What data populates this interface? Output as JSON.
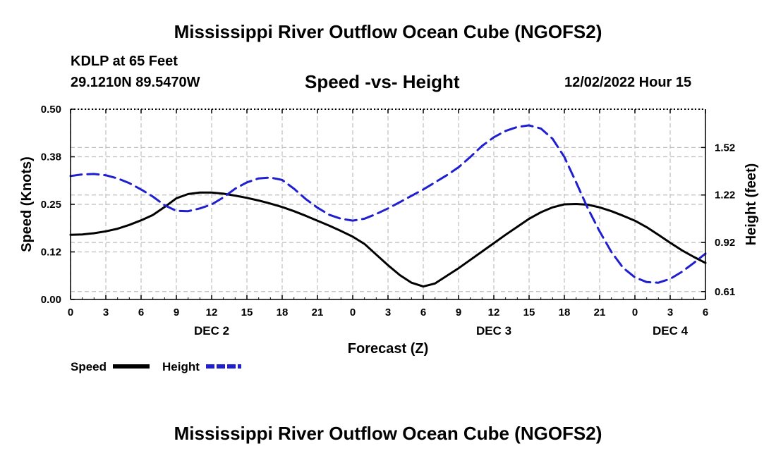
{
  "page": {
    "title_top": "Mississippi River Outflow Ocean Cube (NGOFS2)",
    "title_bottom": "Mississippi River Outflow Ocean Cube (NGOFS2)",
    "station": "KDLP at 65 Feet",
    "coords": "29.1210N  89.5470W",
    "subtitle": "Speed -vs- Height",
    "datetime": "12/02/2022 Hour 15"
  },
  "chart_data": {
    "type": "line",
    "title": "Speed -vs- Height",
    "xlabel": "Forecast (Z)",
    "ylabel": "Speed (Knots)",
    "y2label": "Height (feet)",
    "grid": true,
    "x_range": [
      0,
      54
    ],
    "ylim": [
      0,
      0.5
    ],
    "y2lim": [
      0.56,
      1.762
    ],
    "x_ticks": [
      {
        "x": 0,
        "label": "0"
      },
      {
        "x": 3,
        "label": "3"
      },
      {
        "x": 6,
        "label": "6"
      },
      {
        "x": 9,
        "label": "9"
      },
      {
        "x": 12,
        "label": "12"
      },
      {
        "x": 15,
        "label": "15"
      },
      {
        "x": 18,
        "label": "18"
      },
      {
        "x": 21,
        "label": "21"
      },
      {
        "x": 24,
        "label": "0"
      },
      {
        "x": 27,
        "label": "3"
      },
      {
        "x": 30,
        "label": "6"
      },
      {
        "x": 33,
        "label": "9"
      },
      {
        "x": 36,
        "label": "12"
      },
      {
        "x": 39,
        "label": "15"
      },
      {
        "x": 42,
        "label": "18"
      },
      {
        "x": 45,
        "label": "21"
      },
      {
        "x": 48,
        "label": "0"
      },
      {
        "x": 51,
        "label": "3"
      },
      {
        "x": 54,
        "label": "6"
      }
    ],
    "day_labels": [
      {
        "x": 12,
        "label": "DEC 2"
      },
      {
        "x": 36,
        "label": "DEC 3"
      },
      {
        "x": 51,
        "label": "DEC 4"
      }
    ],
    "y_ticks": [
      {
        "v": 0.0,
        "label": "0.00"
      },
      {
        "v": 0.125,
        "label": "0.12"
      },
      {
        "v": 0.25,
        "label": "0.25"
      },
      {
        "v": 0.375,
        "label": "0.38"
      },
      {
        "v": 0.5,
        "label": "0.50"
      }
    ],
    "y2_ticks": [
      {
        "v": 0.61,
        "label": "0.61"
      },
      {
        "v": 0.92,
        "label": "0.92"
      },
      {
        "v": 1.22,
        "label": "1.22"
      },
      {
        "v": 1.52,
        "label": "1.52"
      }
    ],
    "series": [
      {
        "name": "Speed",
        "axis": "left",
        "color": "#000000",
        "dash": "solid",
        "x": [
          0,
          1,
          2,
          3,
          4,
          5,
          6,
          7,
          8,
          9,
          10,
          11,
          12,
          13,
          14,
          15,
          16,
          17,
          18,
          19,
          20,
          21,
          22,
          23,
          24,
          25,
          26,
          27,
          28,
          29,
          30,
          31,
          32,
          33,
          34,
          35,
          36,
          37,
          38,
          39,
          40,
          41,
          42,
          43,
          44,
          45,
          46,
          47,
          48,
          49,
          50,
          51,
          52,
          53,
          54
        ],
        "values": [
          0.17,
          0.171,
          0.174,
          0.179,
          0.186,
          0.196,
          0.208,
          0.222,
          0.243,
          0.266,
          0.277,
          0.281,
          0.281,
          0.278,
          0.273,
          0.267,
          0.26,
          0.252,
          0.243,
          0.232,
          0.22,
          0.207,
          0.194,
          0.18,
          0.165,
          0.146,
          0.118,
          0.09,
          0.064,
          0.044,
          0.034,
          0.042,
          0.062,
          0.082,
          0.104,
          0.126,
          0.148,
          0.17,
          0.191,
          0.212,
          0.229,
          0.242,
          0.25,
          0.251,
          0.249,
          0.242,
          0.232,
          0.22,
          0.207,
          0.19,
          0.17,
          0.149,
          0.129,
          0.112,
          0.096
        ]
      },
      {
        "name": "Height",
        "axis": "right",
        "color": "#1f1fcf",
        "dash": "dashed",
        "x": [
          0,
          1,
          2,
          3,
          4,
          5,
          6,
          7,
          8,
          9,
          10,
          11,
          12,
          13,
          14,
          15,
          16,
          17,
          18,
          19,
          20,
          21,
          22,
          23,
          24,
          25,
          26,
          27,
          28,
          29,
          30,
          31,
          32,
          33,
          34,
          35,
          36,
          37,
          38,
          39,
          40,
          41,
          42,
          43,
          44,
          45,
          46,
          47,
          48,
          49,
          50,
          51,
          52,
          53,
          54
        ],
        "values": [
          1.34,
          1.35,
          1.353,
          1.345,
          1.325,
          1.295,
          1.255,
          1.21,
          1.155,
          1.12,
          1.118,
          1.135,
          1.16,
          1.205,
          1.26,
          1.3,
          1.325,
          1.33,
          1.315,
          1.26,
          1.195,
          1.14,
          1.095,
          1.07,
          1.058,
          1.07,
          1.1,
          1.135,
          1.175,
          1.215,
          1.255,
          1.3,
          1.345,
          1.395,
          1.46,
          1.53,
          1.585,
          1.625,
          1.65,
          1.66,
          1.64,
          1.575,
          1.46,
          1.3,
          1.135,
          0.99,
          0.86,
          0.76,
          0.7,
          0.67,
          0.666,
          0.69,
          0.735,
          0.79,
          0.85
        ]
      }
    ],
    "legend": {
      "placement": "bottom-left",
      "entries": [
        {
          "label": "Speed",
          "series": "Speed"
        },
        {
          "label": "Height",
          "series": "Height"
        }
      ]
    }
  }
}
